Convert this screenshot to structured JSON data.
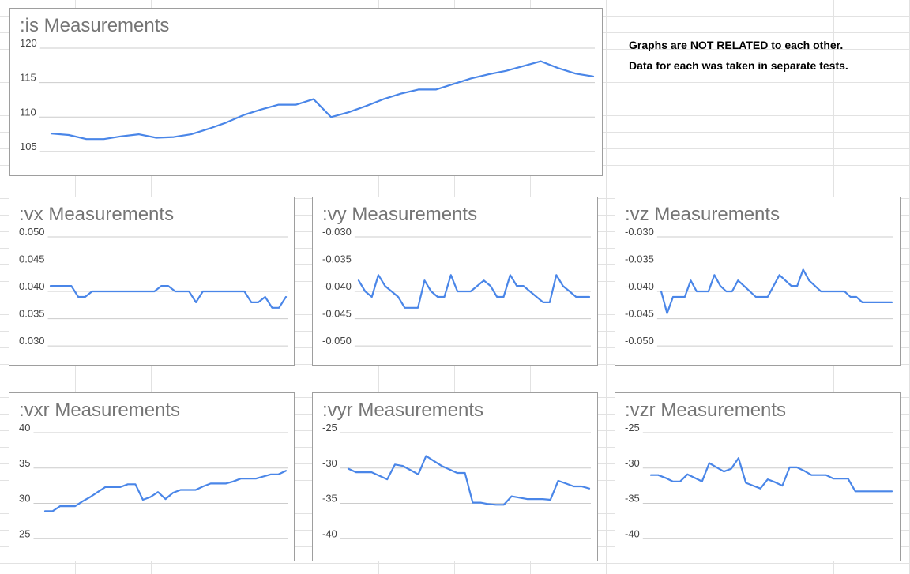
{
  "note": {
    "line1": "Graphs are NOT RELATED to each other.",
    "line2": "Data for each was taken in separate tests."
  },
  "colors": {
    "series": "#4a86e8",
    "gridline": "#cccccc",
    "tick_label": "#444444",
    "title": "#757575"
  },
  "chart_data": [
    {
      "id": "is",
      "type": "line",
      "title": ":is Measurements",
      "ylim": [
        103.5,
        120
      ],
      "yticks": [
        120,
        115,
        110,
        105
      ],
      "decimals": 0,
      "grid": true,
      "x": [
        1,
        2,
        3,
        4,
        5,
        6,
        7,
        8,
        9,
        10,
        11,
        12,
        13,
        14,
        15,
        16,
        17,
        18,
        19,
        20,
        21,
        22,
        23,
        24,
        25,
        26,
        27,
        28,
        29,
        30,
        31,
        32
      ],
      "values": [
        107.6,
        107.4,
        106.8,
        106.8,
        107.2,
        107.5,
        107.0,
        107.1,
        107.5,
        108.3,
        109.2,
        110.3,
        111.1,
        111.8,
        111.8,
        112.6,
        110.0,
        110.7,
        111.6,
        112.6,
        113.4,
        114.0,
        114.0,
        114.8,
        115.6,
        116.2,
        116.7,
        117.4,
        118.1,
        117.1,
        116.3,
        115.9
      ]
    },
    {
      "id": "vx",
      "type": "line",
      "title": ":vx Measurements",
      "ylim": [
        0.029,
        0.05
      ],
      "yticks": [
        0.05,
        0.045,
        0.04,
        0.035,
        0.03
      ],
      "decimals": 3,
      "grid": true,
      "x": [
        1,
        2,
        3,
        4,
        5,
        6,
        7,
        8,
        9,
        10,
        11,
        12,
        13,
        14,
        15,
        16,
        17,
        18,
        19,
        20,
        21,
        22,
        23,
        24,
        25,
        26,
        27,
        28,
        29,
        30,
        31,
        32,
        33,
        34,
        35
      ],
      "values": [
        0.041,
        0.041,
        0.041,
        0.041,
        0.039,
        0.039,
        0.04,
        0.04,
        0.04,
        0.04,
        0.04,
        0.04,
        0.04,
        0.04,
        0.04,
        0.04,
        0.041,
        0.041,
        0.04,
        0.04,
        0.04,
        0.038,
        0.04,
        0.04,
        0.04,
        0.04,
        0.04,
        0.04,
        0.04,
        0.038,
        0.038,
        0.039,
        0.037,
        0.037,
        0.039
      ]
    },
    {
      "id": "vy",
      "type": "line",
      "title": ":vy Measurements",
      "ylim": [
        -0.051,
        -0.03
      ],
      "yticks": [
        -0.03,
        -0.035,
        -0.04,
        -0.045,
        -0.05
      ],
      "decimals": 3,
      "grid": true,
      "x": [
        1,
        2,
        3,
        4,
        5,
        6,
        7,
        8,
        9,
        10,
        11,
        12,
        13,
        14,
        15,
        16,
        17,
        18,
        19,
        20,
        21,
        22,
        23,
        24,
        25,
        26,
        27,
        28,
        29,
        30,
        31,
        32,
        33,
        34,
        35,
        36
      ],
      "values": [
        -0.038,
        -0.04,
        -0.041,
        -0.037,
        -0.039,
        -0.04,
        -0.041,
        -0.043,
        -0.043,
        -0.043,
        -0.038,
        -0.04,
        -0.041,
        -0.041,
        -0.037,
        -0.04,
        -0.04,
        -0.04,
        -0.039,
        -0.038,
        -0.039,
        -0.041,
        -0.041,
        -0.037,
        -0.039,
        -0.039,
        -0.04,
        -0.041,
        -0.042,
        -0.042,
        -0.037,
        -0.039,
        -0.04,
        -0.041,
        -0.041,
        -0.041
      ]
    },
    {
      "id": "vz",
      "type": "line",
      "title": ":vz Measurements",
      "ylim": [
        -0.051,
        -0.03
      ],
      "yticks": [
        -0.03,
        -0.035,
        -0.04,
        -0.045,
        -0.05
      ],
      "decimals": 3,
      "grid": true,
      "x": [
        1,
        2,
        3,
        4,
        5,
        6,
        7,
        8,
        9,
        10,
        11,
        12,
        13,
        14,
        15,
        16,
        17,
        18,
        19,
        20,
        21,
        22,
        23,
        24,
        25,
        26,
        27,
        28,
        29,
        30,
        31,
        32,
        33,
        34,
        35,
        36,
        37,
        38,
        39,
        40
      ],
      "values": [
        -0.04,
        -0.044,
        -0.041,
        -0.041,
        -0.041,
        -0.038,
        -0.04,
        -0.04,
        -0.04,
        -0.037,
        -0.039,
        -0.04,
        -0.04,
        -0.038,
        -0.039,
        -0.04,
        -0.041,
        -0.041,
        -0.041,
        -0.039,
        -0.037,
        -0.038,
        -0.039,
        -0.039,
        -0.036,
        -0.038,
        -0.039,
        -0.04,
        -0.04,
        -0.04,
        -0.04,
        -0.04,
        -0.041,
        -0.041,
        -0.042,
        -0.042,
        -0.042,
        -0.042,
        -0.042,
        -0.042
      ]
    },
    {
      "id": "vxr",
      "type": "line",
      "title": ":vxr Measurements",
      "ylim": [
        23.8,
        40
      ],
      "yticks": [
        40,
        35,
        30,
        25
      ],
      "decimals": 0,
      "grid": true,
      "x": [
        1,
        2,
        3,
        4,
        5,
        6,
        7,
        8,
        9,
        10,
        11,
        12,
        13,
        14,
        15,
        16,
        17,
        18,
        19,
        20,
        21,
        22,
        23,
        24,
        25,
        26,
        27,
        28,
        29,
        30,
        31,
        32,
        33
      ],
      "values": [
        28.9,
        28.9,
        29.6,
        29.6,
        29.6,
        30.3,
        30.9,
        31.6,
        32.3,
        32.3,
        32.3,
        32.7,
        32.7,
        30.5,
        30.9,
        31.6,
        30.6,
        31.5,
        31.9,
        31.9,
        31.9,
        32.4,
        32.8,
        32.8,
        32.8,
        33.1,
        33.5,
        33.5,
        33.5,
        33.8,
        34.1,
        34.1,
        34.6
      ]
    },
    {
      "id": "vyr",
      "type": "line",
      "title": ":vyr Measurements",
      "ylim": [
        -41.2,
        -25
      ],
      "yticks": [
        -25,
        -30,
        -35,
        -40
      ],
      "decimals": 0,
      "grid": true,
      "x": [
        1,
        2,
        3,
        4,
        5,
        6,
        7,
        8,
        9,
        10,
        11,
        12,
        13,
        14,
        15,
        16,
        17,
        18,
        19,
        20,
        21,
        22,
        23,
        24,
        25,
        26,
        27,
        28,
        29,
        30,
        31,
        32
      ],
      "values": [
        -30.1,
        -30.6,
        -30.6,
        -30.6,
        -31.1,
        -31.6,
        -29.5,
        -29.7,
        -30.3,
        -30.9,
        -28.3,
        -29.0,
        -29.7,
        -30.2,
        -30.7,
        -30.7,
        -34.9,
        -34.9,
        -35.1,
        -35.2,
        -35.2,
        -34.0,
        -34.2,
        -34.4,
        -34.4,
        -34.4,
        -34.5,
        -31.8,
        -32.2,
        -32.6,
        -32.6,
        -32.9
      ]
    },
    {
      "id": "vzr",
      "type": "line",
      "title": ":vzr Measurements",
      "ylim": [
        -41.2,
        -25
      ],
      "yticks": [
        -25,
        -30,
        -35,
        -40
      ],
      "decimals": 0,
      "grid": true,
      "x": [
        1,
        2,
        3,
        4,
        5,
        6,
        7,
        8,
        9,
        10,
        11,
        12,
        13,
        14,
        15,
        16,
        17,
        18,
        19,
        20,
        21,
        22,
        23,
        24,
        25,
        26,
        27,
        28,
        29,
        30,
        31,
        32,
        33,
        34
      ],
      "values": [
        -31.0,
        -31.0,
        -31.4,
        -31.9,
        -31.9,
        -30.9,
        -31.4,
        -31.9,
        -29.3,
        -29.9,
        -30.5,
        -30.1,
        -28.6,
        -32.1,
        -32.5,
        -32.9,
        -31.6,
        -32.0,
        -32.5,
        -29.9,
        -29.9,
        -30.4,
        -31.0,
        -31.0,
        -31.0,
        -31.5,
        -31.5,
        -31.5,
        -33.3,
        -33.3,
        -33.3,
        -33.3,
        -33.3,
        -33.3
      ]
    }
  ]
}
